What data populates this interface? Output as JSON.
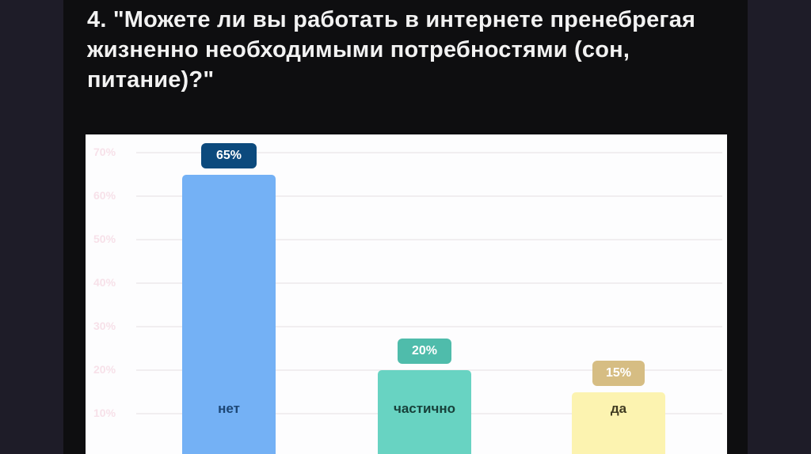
{
  "window": {
    "outer_background": "#1e1c28",
    "slide_background": "#0e0e10"
  },
  "title": {
    "text": "4. \"Можете ли вы работать в интернете пренебрегая жизненно необходимыми потребностями (сон, питание)?\"",
    "lines": [
      "4. \"Можете ли вы работать в интернете пренебрегая",
      "жизненно необходимыми потребностями (сон,",
      "питание)?\""
    ],
    "color": "#f2f2f2"
  },
  "chart_data": {
    "type": "bar",
    "title": "",
    "xlabel": "",
    "ylabel": "",
    "categories": [
      "нет",
      "частично",
      "да"
    ],
    "values": [
      65,
      20,
      15
    ],
    "value_labels": [
      "65%",
      "20%",
      "15%"
    ],
    "y_tick_labels": [
      "70%",
      "60%",
      "50%",
      "40%",
      "30%",
      "20%",
      "10%"
    ],
    "y_tick_values": [
      70,
      60,
      50,
      40,
      30,
      20,
      10
    ],
    "ylim": [
      0,
      73.5
    ],
    "grid": true,
    "legend": "none",
    "panel_background": "#fdfdfe",
    "grid_color": "#f1eef0",
    "tick_label_color": "#f7e1e9",
    "bar_colors": [
      "#74b1f5",
      "#68d3c2",
      "#fcf3b0"
    ],
    "badge_colors": [
      "#0c4a7d",
      "#4fbcab",
      "#d6bd83"
    ],
    "badge_text_color": "#ffffff",
    "category_label_colors": [
      "#1c4674",
      "#17403a",
      "#403b21"
    ]
  }
}
